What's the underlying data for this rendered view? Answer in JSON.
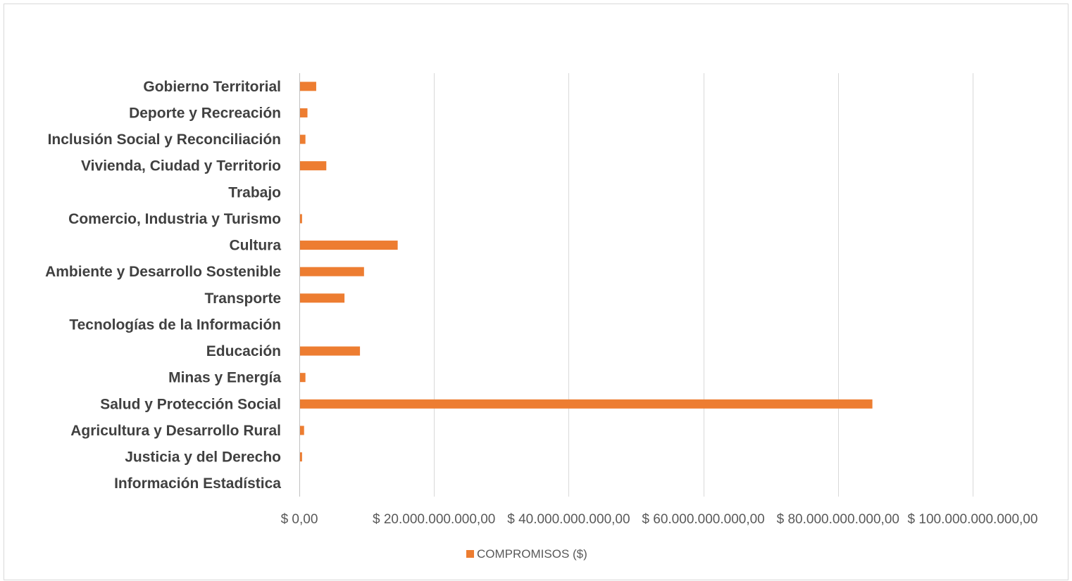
{
  "chart_data": {
    "type": "bar",
    "orientation": "horizontal",
    "categories": [
      "Información Estadística",
      "Justicia y del Derecho",
      "Agricultura y Desarrollo Rural",
      "Salud y Protección Social",
      "Minas y Energía",
      "Educación",
      "Tecnologías de la Información",
      "Transporte",
      "Ambiente y Desarrollo Sostenible",
      "Cultura",
      "Comercio, Industria y Turismo",
      "Trabajo",
      "Vivienda, Ciudad y Territorio",
      "Inclusión Social y Reconciliación",
      "Deporte y Recreación",
      "Gobierno Territorial"
    ],
    "series": [
      {
        "name": "COMPROMISOS ($)",
        "color": "#ed7d31",
        "values": [
          0,
          300000000,
          600000000,
          85000000000,
          800000000,
          8900000000,
          0,
          6600000000,
          9500000000,
          14500000000,
          300000000,
          0,
          3900000000,
          800000000,
          1100000000,
          2400000000
        ]
      }
    ],
    "x_ticks": [
      "$ 0,00",
      "$ 20.000.000.000,00",
      "$ 40.000.000.000,00",
      "$ 60.000.000.000,00",
      "$ 80.000.000.000,00",
      "$ 100.000.000.000,00"
    ],
    "xlim": [
      0,
      100000000000
    ],
    "grid": true,
    "legend_position": "bottom",
    "title": "",
    "xlabel": "",
    "ylabel": ""
  },
  "colors": {
    "bar": "#ed7d31",
    "grid": "#d9d9d9",
    "axis": "#bfbfbf",
    "label": "#404040",
    "tick": "#595959"
  }
}
